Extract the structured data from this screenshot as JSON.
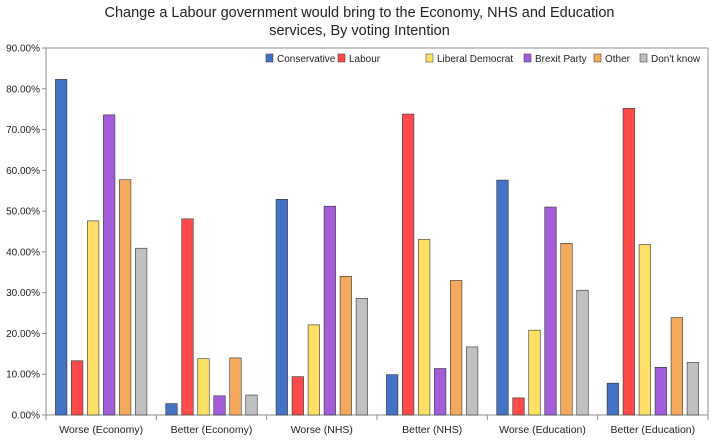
{
  "chart_data": {
    "type": "bar",
    "title_lines": [
      "Change a Labour government would bring to the Economy, NHS and Education",
      "services, By voting Intention"
    ],
    "xlabel": "",
    "ylabel": "",
    "ylim": [
      0,
      90
    ],
    "yticks": [
      "0.00%",
      "10.00%",
      "20.00%",
      "30.00%",
      "40.00%",
      "50.00%",
      "60.00%",
      "70.00%",
      "80.00%",
      "90.00%"
    ],
    "grid": false,
    "legend_position": "top-right",
    "categories": [
      "Worse (Economy)",
      "Better (Economy)",
      "Worse (NHS)",
      "Better (NHS)",
      "Worse (Education)",
      "Better (Education)"
    ],
    "series": [
      {
        "name": "Conservative",
        "color": "#4472C4",
        "values": [
          82.3,
          2.8,
          52.9,
          9.9,
          57.6,
          7.8
        ]
      },
      {
        "name": "Labour",
        "color": "#FF4B4B",
        "values": [
          13.3,
          48.1,
          9.4,
          73.8,
          4.2,
          75.2
        ]
      },
      {
        "name": "Liberal Democrat",
        "color": "#FFE066",
        "values": [
          47.6,
          13.8,
          22.1,
          43.1,
          20.8,
          41.8
        ]
      },
      {
        "name": "Brexit Party",
        "color": "#A35DDB",
        "values": [
          73.6,
          4.7,
          51.2,
          11.4,
          51.0,
          11.7
        ]
      },
      {
        "name": "Other",
        "color": "#F5A95D",
        "values": [
          57.7,
          14.0,
          34.0,
          33.0,
          42.1,
          23.9
        ]
      },
      {
        "name": "Don't know",
        "color": "#C0C0C0",
        "values": [
          40.9,
          4.9,
          28.6,
          16.7,
          30.6,
          12.9
        ]
      }
    ]
  }
}
